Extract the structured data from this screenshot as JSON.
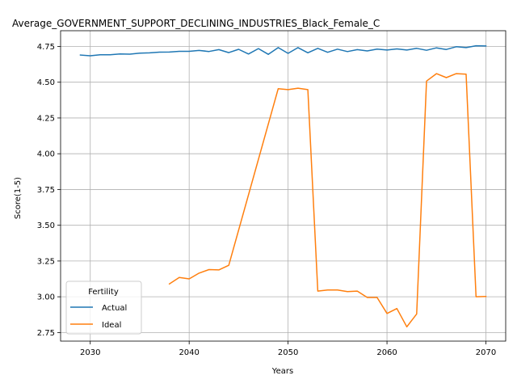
{
  "chart_data": {
    "type": "line",
    "title": "Average_GOVERNMENT_SUPPORT_DECLINING_INDUSTRIES_Black_Female_C",
    "xlabel": "Years",
    "ylabel": "Score(1-5)",
    "xlim": [
      2027,
      2072
    ],
    "ylim": [
      2.69,
      4.86
    ],
    "xticks": [
      "2030",
      "2040",
      "2050",
      "2060",
      "2070"
    ],
    "yticks": [
      "2.75",
      "3.00",
      "3.25",
      "3.50",
      "3.75",
      "4.00",
      "4.25",
      "4.50",
      "4.75"
    ],
    "grid": true,
    "legend": {
      "title": "Fertility",
      "placement": "lower-left"
    },
    "series": [
      {
        "name": "Actual",
        "color": "#1f77b4",
        "x": [
          2029,
          2030,
          2031,
          2032,
          2033,
          2034,
          2035,
          2036,
          2037,
          2038,
          2039,
          2040,
          2041,
          2042,
          2043,
          2044,
          2045,
          2046,
          2047,
          2048,
          2049,
          2050,
          2051,
          2052,
          2053,
          2054,
          2055,
          2056,
          2057,
          2058,
          2059,
          2060,
          2061,
          2062,
          2063,
          2064,
          2065,
          2066,
          2067,
          2068,
          2069,
          2070
        ],
        "y": [
          4.69,
          4.685,
          4.692,
          4.692,
          4.697,
          4.696,
          4.703,
          4.705,
          4.71,
          4.711,
          4.716,
          4.716,
          4.722,
          4.715,
          4.728,
          4.707,
          4.73,
          4.697,
          4.735,
          4.695,
          4.742,
          4.702,
          4.742,
          4.706,
          4.737,
          4.709,
          4.731,
          4.714,
          4.728,
          4.719,
          4.731,
          4.725,
          4.733,
          4.725,
          4.737,
          4.723,
          4.74,
          4.729,
          4.748,
          4.742,
          4.755,
          4.753
        ]
      },
      {
        "name": "Ideal",
        "color": "#ff7f0e",
        "x": [
          2038,
          2039,
          2040,
          2041,
          2042,
          2043,
          2044,
          2049,
          2050,
          2051,
          2052,
          2053,
          2054,
          2055,
          2056,
          2057,
          2058,
          2059,
          2060,
          2061,
          2062,
          2063,
          2064,
          2065,
          2066,
          2067,
          2068,
          2069,
          2070
        ],
        "y": [
          3.09,
          3.135,
          3.125,
          3.165,
          3.19,
          3.188,
          3.22,
          4.455,
          4.448,
          4.458,
          4.448,
          3.04,
          3.047,
          3.047,
          3.036,
          3.04,
          2.995,
          2.995,
          2.883,
          2.918,
          2.79,
          2.88,
          4.508,
          4.56,
          4.532,
          4.56,
          4.556,
          3.0,
          3.002
        ]
      }
    ]
  }
}
